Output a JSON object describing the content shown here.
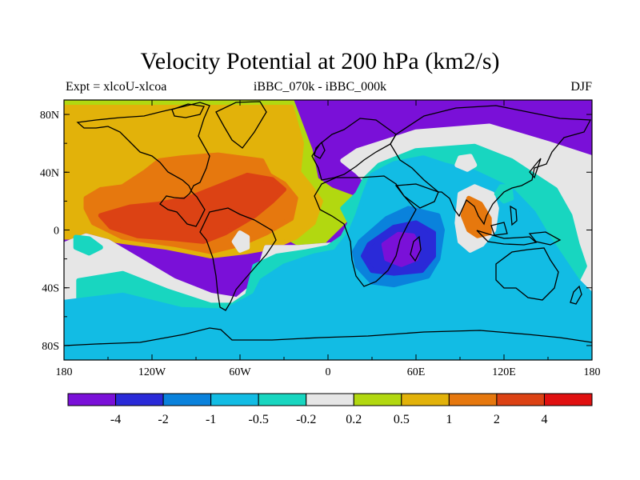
{
  "chart_data": {
    "type": "heatmap",
    "title": "Velocity Potential at 200 hPa (km2/s)",
    "left_subtitle": "Expt = xlcoU-xlcoa",
    "center_subtitle": "iBBC_070k - iBBC_000k",
    "right_subtitle": "DJF",
    "x_ticks": [
      {
        "lon": -180,
        "label": "180"
      },
      {
        "lon": -120,
        "label": "120W"
      },
      {
        "lon": -60,
        "label": "60W"
      },
      {
        "lon": 0,
        "label": "0"
      },
      {
        "lon": 60,
        "label": "60E"
      },
      {
        "lon": 120,
        "label": "120E"
      },
      {
        "lon": 180,
        "label": "180"
      }
    ],
    "y_ticks": [
      {
        "lat": 80,
        "label": "80N"
      },
      {
        "lat": 40,
        "label": "40N"
      },
      {
        "lat": 0,
        "label": "0"
      },
      {
        "lat": -40,
        "label": "40S"
      },
      {
        "lat": -80,
        "label": "80S"
      }
    ],
    "xlim": [
      -180,
      180
    ],
    "ylim": [
      -90,
      90
    ],
    "colorbar": {
      "colors": [
        "#7a10d8",
        "#2a2ad8",
        "#0a82dc",
        "#12bce4",
        "#18d6c0",
        "#e6e6e6",
        "#b2d810",
        "#e2b20a",
        "#e6780e",
        "#dc4214",
        "#e01010"
      ],
      "labels": [
        "-4",
        "-2",
        "-1",
        "-0.5",
        "-0.2",
        "0.2",
        "0.5",
        "1",
        "2",
        "4"
      ]
    },
    "fields": [
      {
        "level": 0,
        "type": "rect",
        "lon": [
          -180,
          180
        ],
        "lat": [
          -90,
          90
        ]
      },
      {
        "level": 6,
        "type": "polygon",
        "points": [
          [
            -180,
            90
          ],
          [
            -25,
            90
          ],
          [
            -12,
            55
          ],
          [
            -8,
            35
          ],
          [
            2,
            28
          ],
          [
            18,
            22
          ],
          [
            30,
            22
          ],
          [
            45,
            28
          ],
          [
            50,
            35
          ],
          [
            52,
            55
          ],
          [
            70,
            65
          ],
          [
            100,
            70
          ],
          [
            125,
            62
          ],
          [
            150,
            55
          ],
          [
            170,
            50
          ],
          [
            180,
            45
          ],
          [
            180,
            20
          ],
          [
            160,
            25
          ],
          [
            150,
            30
          ],
          [
            140,
            45
          ],
          [
            125,
            55
          ],
          [
            105,
            65
          ],
          [
            85,
            62
          ],
          [
            60,
            55
          ],
          [
            38,
            38
          ],
          [
            20,
            15
          ],
          [
            5,
            0
          ],
          [
            -10,
            -15
          ],
          [
            -28,
            -5
          ],
          [
            -40,
            8
          ],
          [
            -44,
            15
          ],
          [
            -60,
            5
          ],
          [
            -85,
            -2
          ],
          [
            -110,
            -5
          ],
          [
            -140,
            -3
          ],
          [
            -155,
            0
          ],
          [
            -170,
            -3
          ],
          [
            -180,
            -2
          ]
        ]
      },
      {
        "level": 7,
        "type": "polygon",
        "points": [
          [
            -180,
            85
          ],
          [
            -25,
            85
          ],
          [
            -18,
            60
          ],
          [
            -20,
            40
          ],
          [
            -12,
            30
          ],
          [
            -5,
            20
          ],
          [
            -10,
            5
          ],
          [
            -22,
            -5
          ],
          [
            -38,
            -12
          ],
          [
            -55,
            -15
          ],
          [
            -80,
            -18
          ],
          [
            -110,
            -12
          ],
          [
            -140,
            -8
          ],
          [
            -160,
            -5
          ],
          [
            -180,
            -5
          ]
        ]
      },
      {
        "level": 7,
        "type": "polygon",
        "points": [
          [
            148,
            55
          ],
          [
            170,
            50
          ],
          [
            180,
            45
          ],
          [
            180,
            20
          ],
          [
            168,
            22
          ],
          [
            155,
            35
          ]
        ]
      },
      {
        "level": 8,
        "type": "polygon",
        "points": [
          [
            -165,
            15
          ],
          [
            -160,
            5
          ],
          [
            -140,
            -5
          ],
          [
            -105,
            -10
          ],
          [
            -80,
            -15
          ],
          [
            -60,
            -10
          ],
          [
            -42,
            -2
          ],
          [
            -25,
            8
          ],
          [
            -22,
            22
          ],
          [
            -30,
            32
          ],
          [
            -40,
            38
          ],
          [
            -45,
            48
          ],
          [
            -75,
            52
          ],
          [
            -100,
            50
          ],
          [
            -115,
            48
          ],
          [
            -125,
            40
          ],
          [
            -140,
            30
          ],
          [
            -155,
            28
          ],
          [
            -165,
            22
          ]
        ]
      },
      {
        "level": 9,
        "type": "polygon",
        "points": [
          [
            -155,
            10
          ],
          [
            -148,
            2
          ],
          [
            -130,
            -4
          ],
          [
            -105,
            -6
          ],
          [
            -85,
            -8
          ],
          [
            -70,
            -2
          ],
          [
            -50,
            10
          ],
          [
            -38,
            20
          ],
          [
            -30,
            28
          ],
          [
            -38,
            35
          ],
          [
            -55,
            38
          ],
          [
            -75,
            30
          ],
          [
            -95,
            22
          ],
          [
            -115,
            18
          ],
          [
            -135,
            16
          ]
        ]
      },
      {
        "level": 8,
        "type": "polygon",
        "points": [
          [
            96,
            22
          ],
          [
            104,
            18
          ],
          [
            110,
            8
          ],
          [
            110,
            -2
          ],
          [
            102,
            -4
          ],
          [
            96,
            0
          ],
          [
            92,
            10
          ]
        ]
      },
      {
        "level": 0,
        "type": "polygon",
        "points": [
          [
            -180,
            -10
          ],
          [
            -165,
            -4
          ],
          [
            -150,
            -8
          ],
          [
            -130,
            -20
          ],
          [
            -105,
            -35
          ],
          [
            -80,
            -45
          ],
          [
            -62,
            -48
          ],
          [
            -50,
            -38
          ],
          [
            -46,
            -25
          ],
          [
            -42,
            -12
          ],
          [
            -20,
            -12
          ],
          [
            5,
            -10
          ],
          [
            25,
            -8
          ],
          [
            20,
            10
          ],
          [
            15,
            20
          ],
          [
            30,
            30
          ],
          [
            20,
            40
          ],
          [
            10,
            48
          ],
          [
            20,
            55
          ],
          [
            60,
            68
          ],
          [
            110,
            72
          ],
          [
            150,
            60
          ],
          [
            180,
            50
          ],
          [
            180,
            -90
          ],
          [
            -180,
            -90
          ]
        ]
      },
      {
        "level": 5,
        "type": "polygon",
        "points": [
          [
            -180,
            -10
          ],
          [
            -165,
            -4
          ],
          [
            -150,
            -8
          ],
          [
            -130,
            -20
          ],
          [
            -105,
            -35
          ],
          [
            -80,
            -45
          ],
          [
            -62,
            -48
          ],
          [
            -50,
            -38
          ],
          [
            -46,
            -25
          ],
          [
            -42,
            -12
          ],
          [
            -20,
            -12
          ],
          [
            5,
            -10
          ],
          [
            25,
            -8
          ],
          [
            20,
            10
          ],
          [
            15,
            20
          ],
          [
            30,
            30
          ],
          [
            20,
            40
          ],
          [
            10,
            48
          ],
          [
            20,
            55
          ],
          [
            60,
            68
          ],
          [
            110,
            72
          ],
          [
            150,
            60
          ],
          [
            180,
            50
          ],
          [
            180,
            -90
          ],
          [
            -180,
            -90
          ]
        ]
      },
      {
        "level": 4,
        "type": "polygon",
        "points": [
          [
            -170,
            -35
          ],
          [
            -140,
            -30
          ],
          [
            -110,
            -42
          ],
          [
            -80,
            -52
          ],
          [
            -65,
            -52
          ],
          [
            -55,
            -45
          ],
          [
            -50,
            -25
          ],
          [
            -35,
            -18
          ],
          [
            -15,
            -15
          ],
          [
            0,
            -12
          ],
          [
            10,
            -5
          ],
          [
            15,
            5
          ],
          [
            10,
            15
          ],
          [
            20,
            25
          ],
          [
            25,
            35
          ],
          [
            35,
            45
          ],
          [
            60,
            55
          ],
          [
            100,
            58
          ],
          [
            125,
            48
          ],
          [
            140,
            38
          ],
          [
            155,
            28
          ],
          [
            165,
            10
          ],
          [
            170,
            -10
          ],
          [
            175,
            -25
          ],
          [
            165,
            -45
          ],
          [
            130,
            -60
          ],
          [
            100,
            -62
          ],
          [
            60,
            -65
          ],
          [
            20,
            -65
          ],
          [
            -30,
            -62
          ],
          [
            -80,
            -62
          ],
          [
            -130,
            -58
          ],
          [
            -170,
            -55
          ]
        ]
      },
      {
        "level": 3,
        "type": "polygon",
        "points": [
          [
            -180,
            -50
          ],
          [
            -140,
            -45
          ],
          [
            -100,
            -55
          ],
          [
            -70,
            -56
          ],
          [
            -50,
            -45
          ],
          [
            -45,
            -35
          ],
          [
            -30,
            -25
          ],
          [
            -10,
            -18
          ],
          [
            5,
            -15
          ],
          [
            15,
            -2
          ],
          [
            20,
            10
          ],
          [
            25,
            25
          ],
          [
            30,
            38
          ],
          [
            45,
            46
          ],
          [
            65,
            50
          ],
          [
            80,
            45
          ],
          [
            100,
            40
          ],
          [
            125,
            28
          ],
          [
            140,
            12
          ],
          [
            150,
            -5
          ],
          [
            160,
            -20
          ],
          [
            170,
            -35
          ],
          [
            180,
            -45
          ],
          [
            180,
            -90
          ],
          [
            -180,
            -90
          ]
        ]
      },
      {
        "level": 5,
        "type": "polygon",
        "points": [
          [
            88,
            45
          ],
          [
            95,
            42
          ],
          [
            100,
            45
          ],
          [
            97,
            51
          ],
          [
            90,
            50
          ]
        ]
      },
      {
        "level": 5,
        "type": "polygon",
        "points": [
          [
            90,
            25
          ],
          [
            100,
            30
          ],
          [
            112,
            25
          ],
          [
            115,
            15
          ],
          [
            113,
            0
          ],
          [
            105,
            -10
          ],
          [
            97,
            -14
          ],
          [
            90,
            -8
          ],
          [
            88,
            5
          ]
        ]
      },
      {
        "level": 8,
        "type": "polygon",
        "points": [
          [
            96,
            22
          ],
          [
            104,
            18
          ],
          [
            110,
            8
          ],
          [
            110,
            -2
          ],
          [
            102,
            -4
          ],
          [
            96,
            0
          ],
          [
            92,
            10
          ]
        ]
      },
      {
        "level": 2,
        "type": "polygon",
        "points": [
          [
            22,
            -8
          ],
          [
            40,
            8
          ],
          [
            55,
            15
          ],
          [
            75,
            10
          ],
          [
            78,
            0
          ],
          [
            75,
            -20
          ],
          [
            68,
            -32
          ],
          [
            45,
            -38
          ],
          [
            30,
            -36
          ],
          [
            20,
            -25
          ],
          [
            18,
            -15
          ]
        ]
      },
      {
        "level": 1,
        "type": "polygon",
        "points": [
          [
            28,
            -10
          ],
          [
            45,
            2
          ],
          [
            60,
            5
          ],
          [
            72,
            -2
          ],
          [
            72,
            -18
          ],
          [
            64,
            -28
          ],
          [
            45,
            -30
          ],
          [
            30,
            -28
          ],
          [
            24,
            -18
          ]
        ]
      },
      {
        "level": 0,
        "type": "polygon",
        "points": [
          [
            38,
            -10
          ],
          [
            48,
            -3
          ],
          [
            58,
            -4
          ],
          [
            62,
            -12
          ],
          [
            60,
            -20
          ],
          [
            50,
            -24
          ],
          [
            40,
            -20
          ]
        ]
      },
      {
        "level": 4,
        "type": "polygon",
        "points": [
          [
            115,
            25
          ],
          [
            120,
            20
          ],
          [
            125,
            22
          ],
          [
            124,
            30
          ],
          [
            118,
            30
          ]
        ]
      },
      {
        "level": 4,
        "type": "polygon",
        "points": [
          [
            -172,
            -5
          ],
          [
            -163,
            -6
          ],
          [
            -155,
            -12
          ],
          [
            -163,
            -16
          ],
          [
            -172,
            -12
          ]
        ]
      },
      {
        "level": 5,
        "type": "polygon",
        "points": [
          [
            -60,
            -2
          ],
          [
            -55,
            -5
          ],
          [
            -55,
            -12
          ],
          [
            -60,
            -14
          ],
          [
            -64,
            -8
          ]
        ]
      }
    ]
  }
}
